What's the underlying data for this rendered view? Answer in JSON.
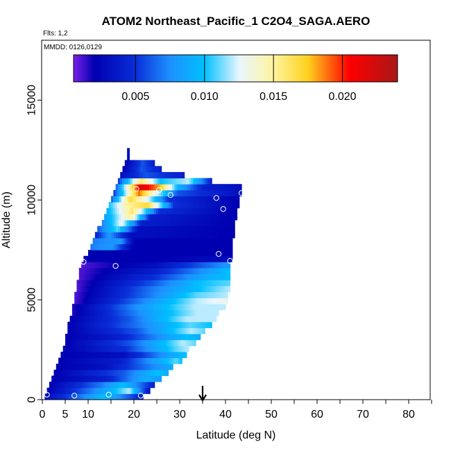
{
  "chart_data": {
    "type": "heatmap",
    "title": "ATOM2 Northeast_Pacific_1 C2O4_SAGA.AERO",
    "flights_note": "Flts: 1,2",
    "date_note": "MMDD: 0126,0129",
    "xlabel": "Latitude (deg N)",
    "ylabel": "Altitude (m)",
    "xlim": [
      0,
      85
    ],
    "ylim": [
      0,
      18000
    ],
    "xticks": [
      0,
      5,
      10,
      20,
      30,
      40,
      50,
      60,
      70,
      80
    ],
    "yticks": [
      0,
      5000,
      10000,
      15000
    ],
    "colorbar": {
      "min": 0.0005,
      "max": 0.024,
      "ticks": [
        0.005,
        0.01,
        0.015,
        0.02
      ],
      "tick_labels": [
        "0.005",
        "0.010",
        "0.015",
        "0.020"
      ],
      "stops": [
        {
          "v": 0.0005,
          "c": "#7b20e8"
        },
        {
          "v": 0.002,
          "c": "#0000b0"
        },
        {
          "v": 0.005,
          "c": "#0a2ed8"
        },
        {
          "v": 0.0075,
          "c": "#1e90ff"
        },
        {
          "v": 0.01,
          "c": "#00c0ff"
        },
        {
          "v": 0.0125,
          "c": "#e8f6ff"
        },
        {
          "v": 0.015,
          "c": "#fff4a0"
        },
        {
          "v": 0.0175,
          "c": "#ffd21e"
        },
        {
          "v": 0.0205,
          "c": "#ff0000"
        },
        {
          "v": 0.024,
          "c": "#a81818"
        }
      ]
    },
    "band_height_m": 300,
    "bands": [
      {
        "alt": 0,
        "lat_min": 0.5,
        "lat_max": 22,
        "profile": [
          [
            0,
            0.003
          ],
          [
            0.3,
            0.006
          ],
          [
            0.6,
            0.01
          ],
          [
            1,
            0.004
          ]
        ]
      },
      {
        "alt": 300,
        "lat_min": 1,
        "lat_max": 23.5,
        "profile": [
          [
            0,
            0.002
          ],
          [
            0.6,
            0.009
          ],
          [
            0.8,
            0.012
          ],
          [
            1,
            0.003
          ]
        ]
      },
      {
        "alt": 600,
        "lat_min": 1.5,
        "lat_max": 24.5,
        "profile": [
          [
            0,
            0.002
          ],
          [
            0.5,
            0.007
          ],
          [
            0.7,
            0.01
          ],
          [
            1,
            0.004
          ]
        ]
      },
      {
        "alt": 900,
        "lat_min": 2,
        "lat_max": 26,
        "profile": [
          [
            0,
            0.002
          ],
          [
            0.5,
            0.004
          ],
          [
            0.85,
            0.009
          ],
          [
            1,
            0.008
          ]
        ]
      },
      {
        "alt": 1200,
        "lat_min": 2.5,
        "lat_max": 27.5,
        "profile": [
          [
            0,
            0.002
          ],
          [
            0.6,
            0.006
          ],
          [
            0.9,
            0.01
          ],
          [
            1,
            0.009
          ]
        ]
      },
      {
        "alt": 1500,
        "lat_min": 3,
        "lat_max": 28.5,
        "profile": [
          [
            0,
            0.002
          ],
          [
            0.4,
            0.003
          ],
          [
            0.9,
            0.008
          ],
          [
            1,
            0.009
          ]
        ]
      },
      {
        "alt": 1800,
        "lat_min": 3.5,
        "lat_max": 30.5,
        "profile": [
          [
            0,
            0.002
          ],
          [
            0.5,
            0.004
          ],
          [
            0.95,
            0.011
          ],
          [
            1,
            0.01
          ]
        ]
      },
      {
        "alt": 2100,
        "lat_min": 4,
        "lat_max": 31.5,
        "profile": [
          [
            0,
            0.002
          ],
          [
            0.5,
            0.003
          ],
          [
            0.9,
            0.009
          ],
          [
            1,
            0.01
          ]
        ]
      },
      {
        "alt": 2400,
        "lat_min": 4.5,
        "lat_max": 32,
        "profile": [
          [
            0,
            0.002
          ],
          [
            0.5,
            0.005
          ],
          [
            0.9,
            0.011
          ],
          [
            1,
            0.012
          ]
        ]
      },
      {
        "alt": 2700,
        "lat_min": 5,
        "lat_max": 33.5,
        "profile": [
          [
            0,
            0.002
          ],
          [
            0.5,
            0.006
          ],
          [
            0.9,
            0.012
          ],
          [
            1,
            0.011
          ]
        ]
      },
      {
        "alt": 3000,
        "lat_min": 5,
        "lat_max": 34.5,
        "profile": [
          [
            0,
            0.002
          ],
          [
            0.4,
            0.004
          ],
          [
            0.9,
            0.01
          ],
          [
            1,
            0.009
          ]
        ]
      },
      {
        "alt": 3300,
        "lat_min": 5.5,
        "lat_max": 35.5,
        "profile": [
          [
            0,
            0.002
          ],
          [
            0.5,
            0.006
          ],
          [
            0.9,
            0.012
          ],
          [
            1,
            0.011
          ]
        ]
      },
      {
        "alt": 3600,
        "lat_min": 5.5,
        "lat_max": 37,
        "profile": [
          [
            0,
            0.002
          ],
          [
            0.5,
            0.007
          ],
          [
            0.85,
            0.011
          ],
          [
            1,
            0.01
          ]
        ]
      },
      {
        "alt": 3900,
        "lat_min": 6,
        "lat_max": 38,
        "profile": [
          [
            0,
            0.002
          ],
          [
            0.4,
            0.006
          ],
          [
            0.8,
            0.012
          ],
          [
            1,
            0.012
          ]
        ]
      },
      {
        "alt": 4200,
        "lat_min": 6.5,
        "lat_max": 38.5,
        "profile": [
          [
            0,
            0.0015
          ],
          [
            0.5,
            0.008
          ],
          [
            0.85,
            0.012
          ],
          [
            1,
            0.012
          ]
        ]
      },
      {
        "alt": 4500,
        "lat_min": 6.5,
        "lat_max": 40,
        "profile": [
          [
            0,
            0.0015
          ],
          [
            0.45,
            0.008
          ],
          [
            0.8,
            0.012
          ],
          [
            1,
            0.012
          ]
        ]
      },
      {
        "alt": 4800,
        "lat_min": 7,
        "lat_max": 40.5,
        "profile": [
          [
            0,
            0.001
          ],
          [
            0.5,
            0.008
          ],
          [
            0.8,
            0.012
          ],
          [
            1,
            0.013
          ]
        ]
      },
      {
        "alt": 5100,
        "lat_min": 7,
        "lat_max": 40.5,
        "profile": [
          [
            0,
            0.001
          ],
          [
            0.5,
            0.007
          ],
          [
            0.8,
            0.011
          ],
          [
            1,
            0.012
          ]
        ]
      },
      {
        "alt": 5400,
        "lat_min": 7.5,
        "lat_max": 41,
        "profile": [
          [
            0,
            0.001
          ],
          [
            0.5,
            0.007
          ],
          [
            0.8,
            0.01
          ],
          [
            1,
            0.012
          ]
        ]
      },
      {
        "alt": 5700,
        "lat_min": 7.5,
        "lat_max": 41,
        "profile": [
          [
            0,
            0.001
          ],
          [
            0.5,
            0.006
          ],
          [
            0.8,
            0.01
          ],
          [
            1,
            0.011
          ]
        ]
      },
      {
        "alt": 6000,
        "lat_min": 8,
        "lat_max": 41,
        "profile": [
          [
            0,
            0.001
          ],
          [
            0.5,
            0.005
          ],
          [
            0.85,
            0.009
          ],
          [
            1,
            0.01
          ]
        ]
      },
      {
        "alt": 6300,
        "lat_min": 8,
        "lat_max": 41,
        "profile": [
          [
            0,
            0.001
          ],
          [
            0.5,
            0.004
          ],
          [
            0.85,
            0.008
          ],
          [
            1,
            0.01
          ]
        ]
      },
      {
        "alt": 6600,
        "lat_min": 8.5,
        "lat_max": 41,
        "profile": [
          [
            0,
            0.001
          ],
          [
            0.5,
            0.003
          ],
          [
            1,
            0.008
          ]
        ]
      },
      {
        "alt": 6900,
        "lat_min": 9,
        "lat_max": 41.5,
        "profile": [
          [
            0,
            0.002
          ],
          [
            0.5,
            0.002
          ],
          [
            1,
            0.003
          ]
        ]
      },
      {
        "alt": 7200,
        "lat_min": 10,
        "lat_max": 41.5,
        "profile": [
          [
            0,
            0.002
          ],
          [
            1,
            0.002
          ]
        ]
      },
      {
        "alt": 7500,
        "lat_min": 10.5,
        "lat_max": 41.5,
        "profile": [
          [
            0,
            0.007
          ],
          [
            0.15,
            0.008
          ],
          [
            0.3,
            0.002
          ],
          [
            1,
            0.002
          ]
        ]
      },
      {
        "alt": 7800,
        "lat_min": 11,
        "lat_max": 41.5,
        "profile": [
          [
            0,
            0.007
          ],
          [
            0.2,
            0.008
          ],
          [
            0.3,
            0.002
          ],
          [
            1,
            0.002
          ]
        ]
      },
      {
        "alt": 8100,
        "lat_min": 11.5,
        "lat_max": 42,
        "profile": [
          [
            0,
            0.004
          ],
          [
            0.1,
            0.008
          ],
          [
            0.25,
            0.003
          ],
          [
            1,
            0.002
          ]
        ]
      },
      {
        "alt": 8400,
        "lat_min": 12,
        "lat_max": 42,
        "profile": [
          [
            0,
            0.006
          ],
          [
            0.15,
            0.011
          ],
          [
            0.3,
            0.003
          ],
          [
            1,
            0.002
          ]
        ]
      },
      {
        "alt": 8700,
        "lat_min": 13,
        "lat_max": 42,
        "profile": [
          [
            0,
            0.007
          ],
          [
            0.15,
            0.013
          ],
          [
            0.3,
            0.004
          ],
          [
            1,
            0.002
          ]
        ]
      },
      {
        "alt": 9000,
        "lat_min": 13.5,
        "lat_max": 42.5,
        "profile": [
          [
            0,
            0.008
          ],
          [
            0.2,
            0.015
          ],
          [
            0.35,
            0.004
          ],
          [
            1,
            0.002
          ]
        ]
      },
      {
        "alt": 9300,
        "lat_min": 14,
        "lat_max": 42.5,
        "profile": [
          [
            0,
            0.009
          ],
          [
            0.2,
            0.016
          ],
          [
            0.4,
            0.005
          ],
          [
            1,
            0.002
          ]
        ]
      },
      {
        "alt": 9600,
        "lat_min": 14.5,
        "lat_max": 43,
        "profile": [
          [
            0,
            0.01
          ],
          [
            0.15,
            0.015
          ],
          [
            0.3,
            0.017
          ],
          [
            0.5,
            0.005
          ],
          [
            1,
            0.002
          ]
        ]
      },
      {
        "alt": 9900,
        "lat_min": 15,
        "lat_max": 43,
        "profile": [
          [
            0,
            0.006
          ],
          [
            0.15,
            0.017
          ],
          [
            0.3,
            0.012
          ],
          [
            0.45,
            0.005
          ],
          [
            1,
            0.002
          ]
        ]
      },
      {
        "alt": 10200,
        "lat_min": 15.5,
        "lat_max": 43.5,
        "profile": [
          [
            0,
            0.005
          ],
          [
            0.2,
            0.019
          ],
          [
            0.35,
            0.012
          ],
          [
            0.5,
            0.006
          ],
          [
            1,
            0.003
          ]
        ]
      },
      {
        "alt": 10500,
        "lat_min": 16,
        "lat_max": 43.5,
        "profile": [
          [
            0,
            0.006
          ],
          [
            0.2,
            0.022
          ],
          [
            0.35,
            0.018
          ],
          [
            0.5,
            0.009
          ],
          [
            0.7,
            0.004
          ],
          [
            1,
            0.003
          ]
        ]
      },
      {
        "alt": 10800,
        "lat_min": 16.5,
        "lat_max": 37,
        "profile": [
          [
            0,
            0.005
          ],
          [
            0.25,
            0.016
          ],
          [
            0.45,
            0.01
          ],
          [
            0.75,
            0.012
          ],
          [
            1,
            0.004
          ]
        ]
      },
      {
        "alt": 11100,
        "lat_min": 17,
        "lat_max": 31,
        "profile": [
          [
            0,
            0.003
          ],
          [
            0.4,
            0.006
          ],
          [
            1,
            0.004
          ]
        ]
      },
      {
        "alt": 11400,
        "lat_min": 17.5,
        "lat_max": 26,
        "profile": [
          [
            0,
            0.002
          ],
          [
            0.5,
            0.006
          ],
          [
            1,
            0.004
          ]
        ]
      },
      {
        "alt": 11700,
        "lat_min": 18,
        "lat_max": 24.5,
        "profile": [
          [
            0,
            0.002
          ],
          [
            0.6,
            0.006
          ],
          [
            1,
            0.004
          ]
        ]
      },
      {
        "alt": 12000,
        "lat_min": 18.5,
        "lat_max": 19,
        "profile": [
          [
            0,
            0.003
          ],
          [
            1,
            0.003
          ]
        ]
      },
      {
        "alt": 12300,
        "lat_min": 18.5,
        "lat_max": 19,
        "profile": [
          [
            0,
            0.003
          ],
          [
            1,
            0.003
          ]
        ]
      }
    ],
    "circles": [
      {
        "lat": 1,
        "alt": 250
      },
      {
        "lat": 7,
        "alt": 200
      },
      {
        "lat": 14.5,
        "alt": 250
      },
      {
        "lat": 21.5,
        "alt": 200
      },
      {
        "lat": 9,
        "alt": 6900
      },
      {
        "lat": 16,
        "alt": 6700
      },
      {
        "lat": 38.5,
        "alt": 7300
      },
      {
        "lat": 41,
        "alt": 6950
      },
      {
        "lat": 39.5,
        "alt": 9550
      },
      {
        "lat": 38,
        "alt": 10100
      },
      {
        "lat": 28,
        "alt": 10250
      },
      {
        "lat": 20.5,
        "alt": 10550
      },
      {
        "lat": 25.5,
        "alt": 10500
      },
      {
        "lat": 43.5,
        "alt": 10350
      }
    ],
    "arrow_lat": 35
  }
}
